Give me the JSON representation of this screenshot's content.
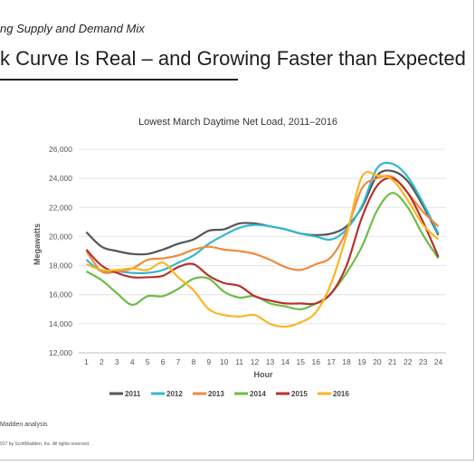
{
  "slide": {
    "section_label": "ng Supply and Demand Mix",
    "headline": "k Curve Is Real – and Growing Faster than Expected",
    "source": "Madden analysis",
    "copyright": "017 by ScottMadden, Inc. All rights reserved."
  },
  "chart_data": {
    "type": "line",
    "title": "Lowest March Daytime Net Load, 2011–2016",
    "xlabel": "Hour",
    "ylabel": "Megawatts",
    "x": [
      1,
      2,
      3,
      4,
      5,
      6,
      7,
      8,
      9,
      10,
      11,
      12,
      13,
      14,
      15,
      16,
      17,
      18,
      19,
      20,
      21,
      22,
      23,
      24
    ],
    "yticks": [
      "12,000",
      "14,000",
      "16,000",
      "18,000",
      "20,000",
      "22,000",
      "24,000",
      "26,000"
    ],
    "ylim": [
      12000,
      26000
    ],
    "grid": true,
    "legend": "bottom",
    "series": [
      {
        "name": "2011",
        "color": "#555555",
        "values": [
          20300,
          19300,
          19000,
          18800,
          18800,
          19100,
          19500,
          19800,
          20400,
          20500,
          20900,
          20900,
          20700,
          20500,
          20200,
          20100,
          20200,
          20700,
          22000,
          24200,
          24500,
          23800,
          22100,
          20100
        ]
      },
      {
        "name": "2012",
        "color": "#33b7cf",
        "values": [
          18400,
          17600,
          17600,
          17500,
          17500,
          17700,
          18200,
          18700,
          19500,
          20100,
          20600,
          20800,
          20700,
          20500,
          20200,
          20000,
          19800,
          20500,
          22100,
          24700,
          25000,
          24100,
          22300,
          20200
        ]
      },
      {
        "name": "2013",
        "color": "#f08a3c",
        "values": [
          19000,
          17600,
          17600,
          17800,
          18400,
          18500,
          18700,
          19100,
          19300,
          19100,
          19000,
          18800,
          18400,
          17900,
          17700,
          18100,
          18600,
          20400,
          23300,
          24000,
          24100,
          23000,
          21700,
          20700
        ]
      },
      {
        "name": "2014",
        "color": "#6cbd45",
        "values": [
          17600,
          17000,
          16100,
          15300,
          15900,
          15900,
          16400,
          17100,
          17100,
          16200,
          15800,
          15900,
          15400,
          15200,
          15000,
          15400,
          16100,
          17500,
          19300,
          21800,
          23000,
          22000,
          20100,
          18500
        ]
      },
      {
        "name": "2015",
        "color": "#b7312c",
        "values": [
          19100,
          18000,
          17500,
          17200,
          17200,
          17300,
          17900,
          18100,
          17300,
          16800,
          16600,
          15900,
          15600,
          15400,
          15400,
          15400,
          16100,
          18000,
          21300,
          23500,
          24000,
          23000,
          21000,
          18600
        ]
      },
      {
        "name": "2016",
        "color": "#f9b621",
        "values": [
          18100,
          17700,
          17700,
          17800,
          17700,
          18200,
          17200,
          16300,
          15000,
          14600,
          14500,
          14600,
          14000,
          13800,
          14100,
          14800,
          16800,
          20100,
          24100,
          24200,
          23900,
          22500,
          20800,
          19800
        ]
      }
    ]
  }
}
